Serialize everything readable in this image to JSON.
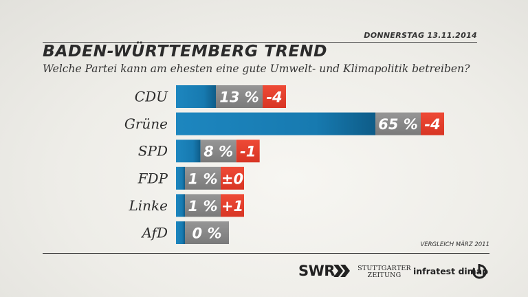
{
  "header": {
    "date": "DONNERSTAG 13.11.2014",
    "title": "BADEN-WÜRTTEMBERG TREND",
    "subtitle": "Welche Partei kann am ehesten eine gute Umwelt- und Klimapolitik betreiben?"
  },
  "chart_data": {
    "type": "bar",
    "orientation": "horizontal",
    "title": "BADEN-WÜRTTEMBERG TREND",
    "subtitle": "Welche Partei kann am ehesten eine gute Umwelt- und Klimapolitik betreiben?",
    "categories": [
      "CDU",
      "Grüne",
      "SPD",
      "FDP",
      "Linke",
      "AfD"
    ],
    "values": [
      13,
      65,
      8,
      1,
      1,
      0
    ],
    "value_labels": [
      "13 %",
      "65 %",
      "8 %",
      "1 %",
      "1 %",
      "0 %"
    ],
    "changes": [
      "-4",
      "-4",
      "-1",
      "±0",
      "+1",
      ""
    ],
    "unit": "%",
    "grid": false,
    "legend": "none",
    "xlim": [
      0,
      65
    ]
  },
  "colors": {
    "bar": "#1d7fb5",
    "bar_dark": "#0d5a86",
    "value_box": "#8a8a8a",
    "change_box": "#e8402e"
  },
  "note": "VERGLEICH MÄRZ 2011",
  "footer": {
    "swr": "SWR",
    "swr_icon": "double-chevron-right-icon",
    "stuttgarter_line1": "STUTTGARTER",
    "stuttgarter_line2": "ZEITUNG",
    "infratest": "infratest dimap",
    "infratest_icon": "infratest-logo-icon"
  }
}
